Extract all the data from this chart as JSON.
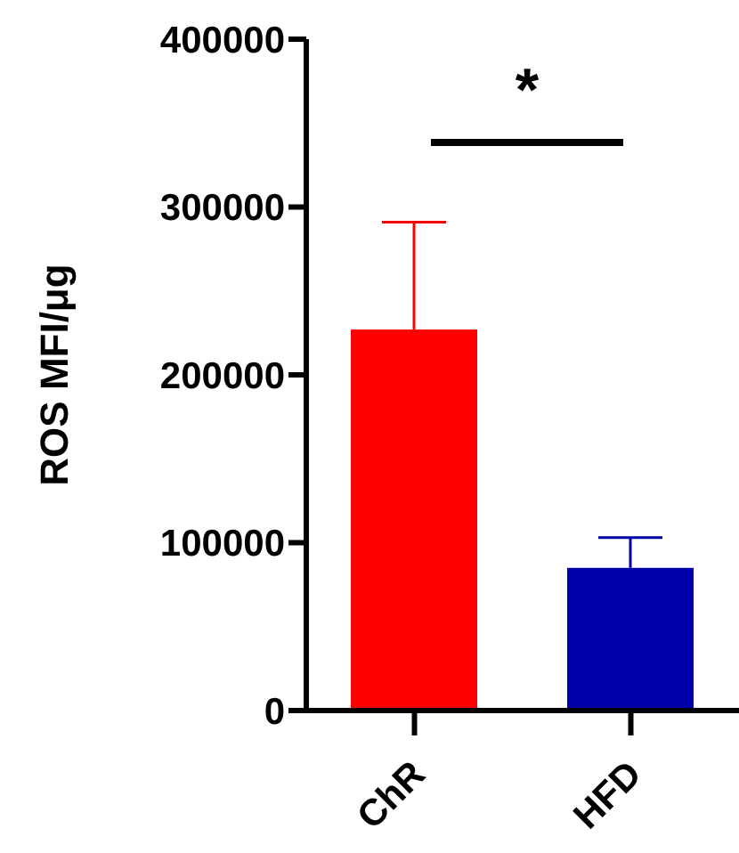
{
  "chart_data": {
    "type": "bar",
    "ylabel": "ROS MFI/μg",
    "categories": [
      "ChR",
      "HFD"
    ],
    "values": [
      227000,
      85000
    ],
    "colors": [
      "#ff0000",
      "#0000aa"
    ],
    "errors": [
      [
        227000,
        291000
      ],
      [
        85000,
        103000
      ]
    ],
    "ylim": [
      0,
      400000
    ],
    "yticks": [
      0,
      100000,
      200000,
      300000,
      400000
    ],
    "annotations": [
      "*"
    ]
  }
}
